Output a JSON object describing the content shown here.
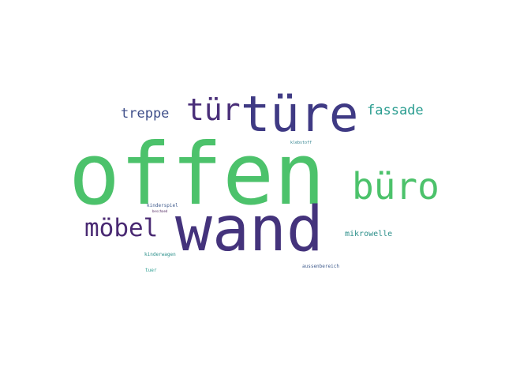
{
  "background": "#ffffff",
  "words": [
    {
      "key": "offen",
      "text": "offen",
      "color": "#4cc26b"
    },
    {
      "key": "wand",
      "text": "wand",
      "color": "#44337c"
    },
    {
      "key": "tuere",
      "text": "türe",
      "color": "#3f3a84"
    },
    {
      "key": "buero",
      "text": "büro",
      "color": "#4cc26b"
    },
    {
      "key": "tuer",
      "text": "tür",
      "color": "#4a2f79"
    },
    {
      "key": "moebel",
      "text": "möbel",
      "color": "#4a2a73"
    },
    {
      "key": "treppe",
      "text": "treppe",
      "color": "#3f4f8a"
    },
    {
      "key": "fassade",
      "text": "fassade",
      "color": "#2a9d90"
    },
    {
      "key": "mikrowelle",
      "text": "mikrowelle",
      "color": "#2c8f8a"
    },
    {
      "key": "klebstoff",
      "text": "klebstoff",
      "color": "#2c7f8c"
    },
    {
      "key": "kinderspiel",
      "text": "kinderspiel",
      "color": "#3f5b8c"
    },
    {
      "key": "beschaedigt",
      "text": "beschaed",
      "color": "#4a1f5a"
    },
    {
      "key": "kinderwagen",
      "text": "kinderwagen",
      "color": "#2a8f8a"
    },
    {
      "key": "tuer_small",
      "text": "tuer",
      "color": "#2a9d90"
    },
    {
      "key": "aussenbereich",
      "text": "aussenbereich",
      "color": "#3f5b8c"
    }
  ]
}
